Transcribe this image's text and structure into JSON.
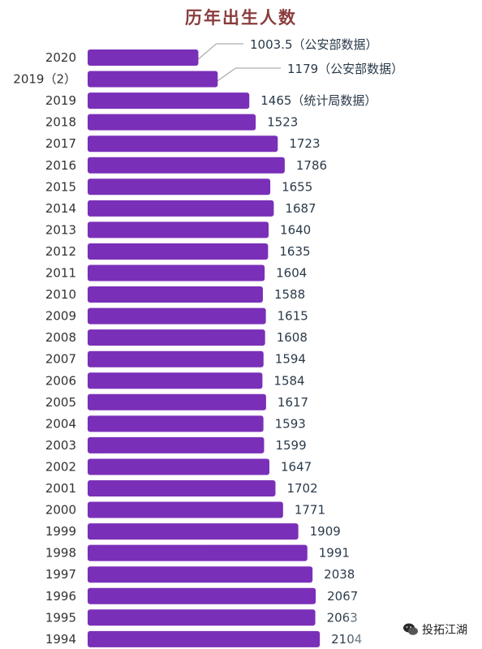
{
  "chart_data": {
    "type": "bar",
    "orientation": "horizontal",
    "title": "历年出生人数",
    "categories": [
      "2020",
      "2019（2）",
      "2019",
      "2018",
      "2017",
      "2016",
      "2015",
      "2014",
      "2013",
      "2012",
      "2011",
      "2010",
      "2009",
      "2008",
      "2007",
      "2006",
      "2005",
      "2004",
      "2003",
      "2002",
      "2001",
      "2000",
      "1999",
      "1998",
      "1997",
      "1996",
      "1995",
      "1994"
    ],
    "values": [
      1003.5,
      1179,
      1465,
      1523,
      1723,
      1786,
      1655,
      1687,
      1640,
      1635,
      1604,
      1588,
      1615,
      1608,
      1594,
      1584,
      1617,
      1593,
      1599,
      1647,
      1702,
      1771,
      1909,
      1991,
      2038,
      2067,
      2063,
      2104
    ],
    "value_labels": [
      "1003.5（公安部数据）",
      "1179（公安部数据）",
      "1465（统计局数据）",
      "1523",
      "1723",
      "1786",
      "1655",
      "1687",
      "1640",
      "1635",
      "1604",
      "1588",
      "1615",
      "1608",
      "1594",
      "1584",
      "1617",
      "1593",
      "1599",
      "1647",
      "1702",
      "1771",
      "1909",
      "1991",
      "2038",
      "2067",
      "2063",
      "2104"
    ],
    "bar_color": "#7a2fb8",
    "xlabel": "",
    "ylabel": "",
    "grid": false,
    "legend": "none"
  },
  "watermark": {
    "icon": "wechat-icon",
    "text": "投拓江湖"
  }
}
